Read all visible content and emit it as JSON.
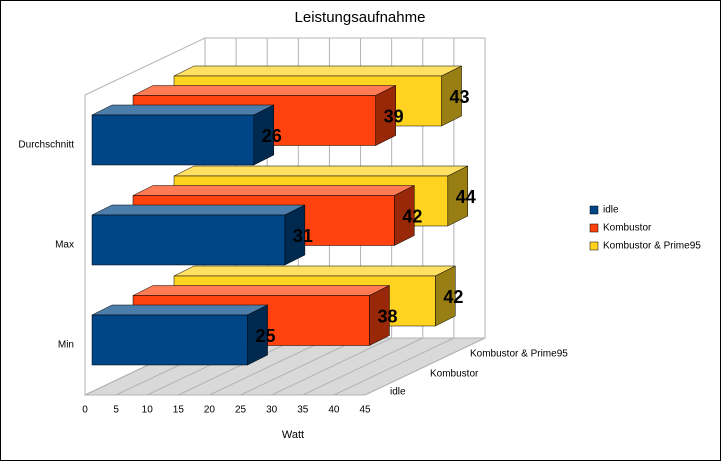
{
  "chart_data": {
    "type": "bar3d",
    "title": "Leistungsaufnahme",
    "x_label": "Watt",
    "categories": [
      "Durchschnitt",
      "Max",
      "Min"
    ],
    "series": [
      {
        "name": "idle",
        "color": "#004586",
        "values": [
          26,
          31,
          25
        ]
      },
      {
        "name": "Kombustor",
        "color": "#ff420e",
        "values": [
          39,
          42,
          38
        ]
      },
      {
        "name": "Kombustor & Prime95",
        "color": "#ffd320",
        "values": [
          43,
          44,
          42
        ]
      }
    ],
    "xlim": [
      0,
      45
    ],
    "xticks": [
      0,
      5,
      10,
      15,
      20,
      25,
      30,
      35,
      40,
      45
    ],
    "grid": true,
    "legend": "right"
  }
}
